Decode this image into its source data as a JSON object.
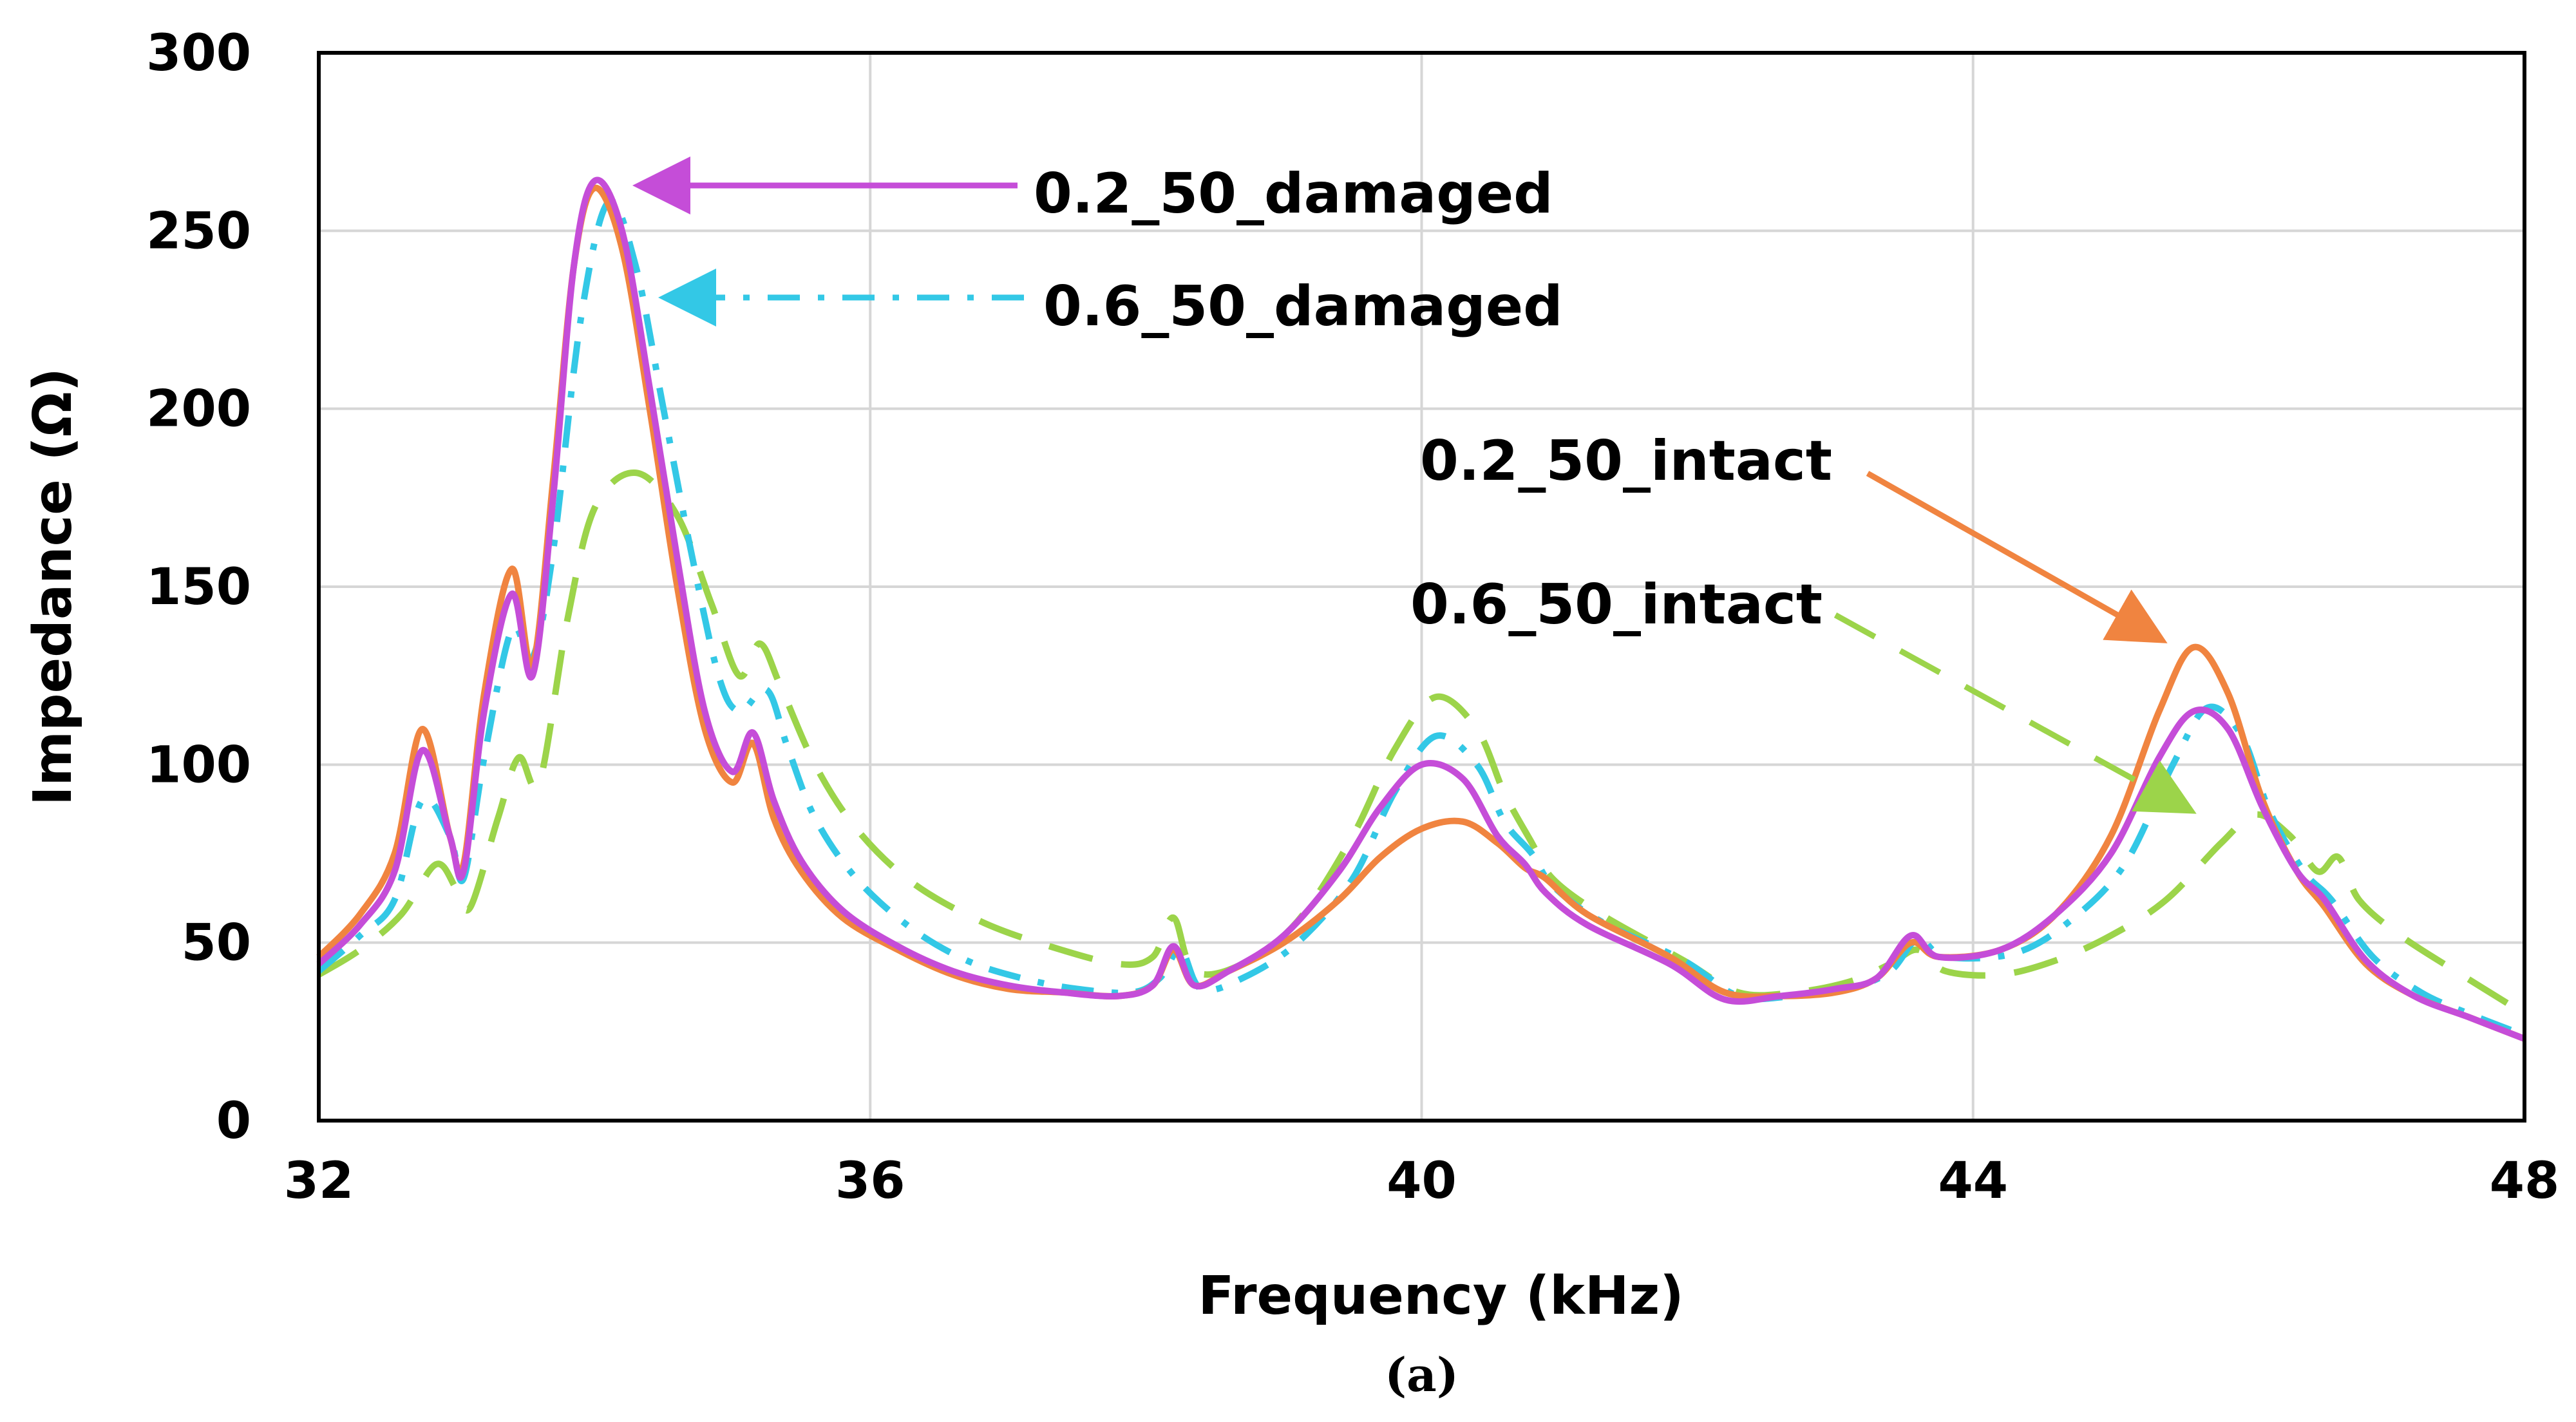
{
  "chart_data": {
    "type": "line",
    "title": "",
    "xlabel": "Frequency (kHz)",
    "ylabel": "Impedance (Ω)",
    "caption": "(a)",
    "xlim": [
      32,
      48
    ],
    "ylim": [
      0,
      300
    ],
    "xticks": [
      32,
      36,
      40,
      44,
      48
    ],
    "yticks": [
      0,
      50,
      100,
      150,
      200,
      250,
      300
    ],
    "grid": true,
    "legend": "none",
    "series": [
      {
        "name": "0.2_50_intact",
        "color": "#F08440",
        "dash": "solid",
        "points": [
          [
            32,
            46
          ],
          [
            32.3,
            58
          ],
          [
            32.55,
            75
          ],
          [
            32.75,
            110
          ],
          [
            32.95,
            80
          ],
          [
            33.05,
            72
          ],
          [
            33.2,
            120
          ],
          [
            33.4,
            155
          ],
          [
            33.55,
            128
          ],
          [
            33.7,
            180
          ],
          [
            33.85,
            240
          ],
          [
            34.0,
            262
          ],
          [
            34.2,
            245
          ],
          [
            34.4,
            200
          ],
          [
            34.6,
            150
          ],
          [
            34.8,
            110
          ],
          [
            35.0,
            95
          ],
          [
            35.15,
            106
          ],
          [
            35.3,
            85
          ],
          [
            35.5,
            70
          ],
          [
            35.8,
            57
          ],
          [
            36.2,
            48
          ],
          [
            36.6,
            41
          ],
          [
            37.0,
            37
          ],
          [
            37.4,
            36
          ],
          [
            37.8,
            35
          ],
          [
            38.05,
            38
          ],
          [
            38.2,
            48
          ],
          [
            38.35,
            38
          ],
          [
            38.6,
            42
          ],
          [
            39.0,
            50
          ],
          [
            39.4,
            62
          ],
          [
            39.7,
            74
          ],
          [
            40.0,
            82
          ],
          [
            40.3,
            84
          ],
          [
            40.55,
            78
          ],
          [
            40.75,
            71
          ],
          [
            40.9,
            68
          ],
          [
            41.2,
            58
          ],
          [
            41.8,
            46
          ],
          [
            42.2,
            36
          ],
          [
            42.6,
            35
          ],
          [
            43.0,
            36
          ],
          [
            43.3,
            40
          ],
          [
            43.55,
            50
          ],
          [
            43.75,
            46
          ],
          [
            44.2,
            48
          ],
          [
            44.6,
            58
          ],
          [
            45.0,
            80
          ],
          [
            45.35,
            115
          ],
          [
            45.6,
            133
          ],
          [
            45.85,
            120
          ],
          [
            46.1,
            90
          ],
          [
            46.35,
            70
          ],
          [
            46.55,
            60
          ],
          [
            46.85,
            44
          ],
          [
            47.2,
            35
          ],
          [
            47.6,
            29
          ],
          [
            48,
            23
          ]
        ]
      },
      {
        "name": "0.2_50_damaged",
        "color": "#C54DD8",
        "dash": "solid",
        "points": [
          [
            32,
            44
          ],
          [
            32.3,
            55
          ],
          [
            32.55,
            70
          ],
          [
            32.75,
            104
          ],
          [
            32.95,
            80
          ],
          [
            33.05,
            70
          ],
          [
            33.2,
            115
          ],
          [
            33.4,
            148
          ],
          [
            33.55,
            125
          ],
          [
            33.7,
            175
          ],
          [
            33.85,
            240
          ],
          [
            34.0,
            264
          ],
          [
            34.2,
            250
          ],
          [
            34.4,
            206
          ],
          [
            34.6,
            158
          ],
          [
            34.8,
            115
          ],
          [
            35.0,
            98
          ],
          [
            35.15,
            109
          ],
          [
            35.3,
            90
          ],
          [
            35.5,
            73
          ],
          [
            35.8,
            59
          ],
          [
            36.2,
            49
          ],
          [
            36.6,
            42
          ],
          [
            37.0,
            38
          ],
          [
            37.4,
            36
          ],
          [
            37.8,
            35
          ],
          [
            38.05,
            38
          ],
          [
            38.2,
            49
          ],
          [
            38.35,
            38
          ],
          [
            38.6,
            42
          ],
          [
            39.0,
            52
          ],
          [
            39.4,
            70
          ],
          [
            39.7,
            88
          ],
          [
            40.0,
            100
          ],
          [
            40.3,
            96
          ],
          [
            40.55,
            80
          ],
          [
            40.75,
            72
          ],
          [
            40.9,
            64
          ],
          [
            41.2,
            55
          ],
          [
            41.8,
            44
          ],
          [
            42.2,
            34
          ],
          [
            42.6,
            35
          ],
          [
            43.0,
            37
          ],
          [
            43.3,
            40
          ],
          [
            43.55,
            52
          ],
          [
            43.75,
            46
          ],
          [
            44.2,
            48
          ],
          [
            44.6,
            58
          ],
          [
            45.0,
            75
          ],
          [
            45.35,
            102
          ],
          [
            45.6,
            115
          ],
          [
            45.85,
            110
          ],
          [
            46.1,
            88
          ],
          [
            46.35,
            70
          ],
          [
            46.55,
            62
          ],
          [
            46.85,
            45
          ],
          [
            47.2,
            35
          ],
          [
            47.6,
            29
          ],
          [
            48,
            23
          ]
        ]
      },
      {
        "name": "0.6_50_damaged",
        "color": "#33C8E6",
        "dash": "dashdot",
        "points": [
          [
            32,
            42
          ],
          [
            32.3,
            52
          ],
          [
            32.55,
            62
          ],
          [
            32.75,
            90
          ],
          [
            32.95,
            80
          ],
          [
            33.05,
            68
          ],
          [
            33.2,
            102
          ],
          [
            33.4,
            138
          ],
          [
            33.55,
            130
          ],
          [
            33.7,
            160
          ],
          [
            33.9,
            225
          ],
          [
            34.1,
            258
          ],
          [
            34.3,
            240
          ],
          [
            34.5,
            200
          ],
          [
            34.7,
            160
          ],
          [
            34.9,
            125
          ],
          [
            35.05,
            115
          ],
          [
            35.25,
            121
          ],
          [
            35.4,
            105
          ],
          [
            35.6,
            85
          ],
          [
            35.9,
            68
          ],
          [
            36.3,
            54
          ],
          [
            36.7,
            45
          ],
          [
            37.1,
            40
          ],
          [
            37.5,
            37
          ],
          [
            37.9,
            36
          ],
          [
            38.1,
            40
          ],
          [
            38.25,
            48
          ],
          [
            38.4,
            37
          ],
          [
            38.7,
            40
          ],
          [
            39.1,
            50
          ],
          [
            39.5,
            68
          ],
          [
            39.8,
            92
          ],
          [
            40.1,
            108
          ],
          [
            40.4,
            100
          ],
          [
            40.6,
            84
          ],
          [
            40.8,
            75
          ],
          [
            40.95,
            66
          ],
          [
            41.3,
            56
          ],
          [
            41.9,
            45
          ],
          [
            42.3,
            35
          ],
          [
            42.7,
            35
          ],
          [
            43.1,
            37
          ],
          [
            43.4,
            42
          ],
          [
            43.6,
            51
          ],
          [
            43.8,
            46
          ],
          [
            44.3,
            47
          ],
          [
            44.7,
            56
          ],
          [
            45.1,
            72
          ],
          [
            45.45,
            100
          ],
          [
            45.7,
            116
          ],
          [
            45.95,
            108
          ],
          [
            46.15,
            87
          ],
          [
            46.4,
            70
          ],
          [
            46.6,
            62
          ],
          [
            46.9,
            46
          ],
          [
            47.25,
            36
          ],
          [
            47.6,
            30
          ],
          [
            48,
            24
          ]
        ]
      },
      {
        "name": "0.6_50_intact",
        "color": "#9CD44A",
        "dash": "dashed",
        "points": [
          [
            32,
            41
          ],
          [
            32.3,
            48
          ],
          [
            32.6,
            58
          ],
          [
            32.85,
            72
          ],
          [
            33.0,
            65
          ],
          [
            33.1,
            60
          ],
          [
            33.3,
            85
          ],
          [
            33.45,
            102
          ],
          [
            33.6,
            95
          ],
          [
            33.8,
            140
          ],
          [
            34.0,
            172
          ],
          [
            34.3,
            182
          ],
          [
            34.6,
            170
          ],
          [
            34.85,
            145
          ],
          [
            35.05,
            125
          ],
          [
            35.2,
            134
          ],
          [
            35.35,
            122
          ],
          [
            35.6,
            100
          ],
          [
            35.9,
            82
          ],
          [
            36.3,
            67
          ],
          [
            36.8,
            56
          ],
          [
            37.3,
            49
          ],
          [
            37.8,
            44
          ],
          [
            38.05,
            46
          ],
          [
            38.2,
            57
          ],
          [
            38.35,
            42
          ],
          [
            38.7,
            44
          ],
          [
            39.1,
            56
          ],
          [
            39.5,
            80
          ],
          [
            39.8,
            104
          ],
          [
            40.1,
            119
          ],
          [
            40.4,
            110
          ],
          [
            40.6,
            92
          ],
          [
            40.8,
            78
          ],
          [
            40.95,
            68
          ],
          [
            41.3,
            58
          ],
          [
            41.9,
            45
          ],
          [
            42.3,
            36
          ],
          [
            42.7,
            36
          ],
          [
            43.1,
            39
          ],
          [
            43.4,
            44
          ],
          [
            43.6,
            48
          ],
          [
            43.8,
            42
          ],
          [
            44.2,
            41
          ],
          [
            44.6,
            45
          ],
          [
            45.0,
            52
          ],
          [
            45.4,
            62
          ],
          [
            45.8,
            78
          ],
          [
            46.05,
            86
          ],
          [
            46.3,
            80
          ],
          [
            46.5,
            70
          ],
          [
            46.65,
            74
          ],
          [
            46.8,
            62
          ],
          [
            47.1,
            52
          ],
          [
            47.5,
            42
          ],
          [
            48,
            30
          ]
        ]
      }
    ],
    "annotations": [
      {
        "text": "0.2_50_damaged",
        "series": "0.2_50_damaged"
      },
      {
        "text": "0.6_50_damaged",
        "series": "0.6_50_damaged"
      },
      {
        "text": "0.2_50_intact",
        "series": "0.2_50_intact"
      },
      {
        "text": "0.6_50_intact",
        "series": "0.6_50_intact"
      }
    ]
  }
}
